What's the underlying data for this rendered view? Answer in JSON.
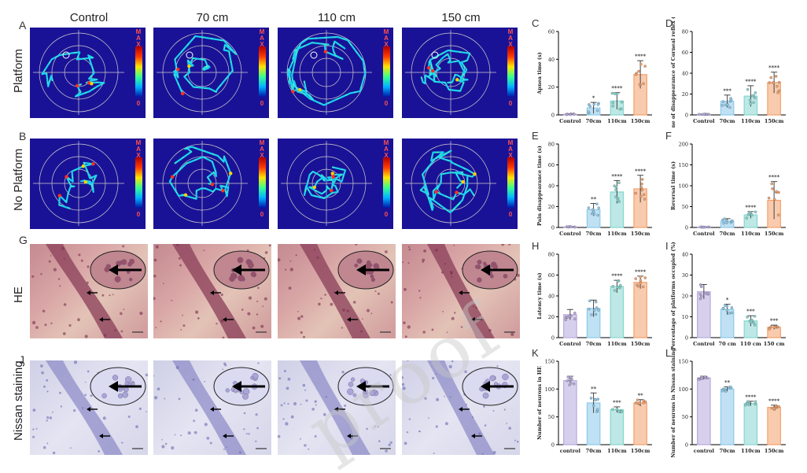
{
  "figure": {
    "columns": [
      "Control",
      "70 cm",
      "110 cm",
      "150 cm"
    ],
    "rows": {
      "A": "Platform",
      "B": "No Platform",
      "G": "HE",
      "J": "Nissan staining"
    },
    "letters": [
      "A",
      "B",
      "G",
      "J",
      "C",
      "D",
      "E",
      "F",
      "H",
      "I",
      "K",
      "L"
    ],
    "colorbar": {
      "top": "M A X",
      "bottom": "0"
    },
    "watermark": "proof",
    "colors": {
      "control": "#b7a9dc",
      "g70": "#8cc9ea",
      "g110": "#86d6cf",
      "g150": "#f4a06b",
      "track_bg": "#1a1296"
    }
  },
  "chart_data": [
    {
      "id": "C",
      "type": "bar",
      "categories": [
        "Control",
        "70cm",
        "110cm",
        "150cm"
      ],
      "values": [
        0.5,
        5,
        10,
        29
      ],
      "errors": [
        0.3,
        4,
        6,
        10
      ],
      "significance": [
        "",
        "*",
        "****",
        "****"
      ],
      "ylabel": "Apnea time (s)",
      "ylim": [
        0,
        60
      ],
      "yticks": [
        0,
        20,
        40,
        60
      ]
    },
    {
      "id": "D",
      "type": "bar",
      "categories": [
        "Control",
        "70cm",
        "110cm",
        "150cm"
      ],
      "values": [
        0.5,
        13,
        18,
        31
      ],
      "errors": [
        0.3,
        6,
        10,
        10
      ],
      "significance": [
        "",
        "***",
        "****",
        "****"
      ],
      "ylabel": "Time of disappearance of Corneal reflex (s)",
      "ylim": [
        0,
        80
      ],
      "yticks": [
        0,
        20,
        40,
        60,
        80
      ]
    },
    {
      "id": "E",
      "type": "bar",
      "categories": [
        "Control",
        "70cm",
        "110cm",
        "150cm"
      ],
      "values": [
        0.5,
        17,
        34,
        37
      ],
      "errors": [
        0.3,
        6,
        11,
        13
      ],
      "significance": [
        "",
        "**",
        "****",
        "****"
      ],
      "ylabel": "Pain disappearance time (s)",
      "ylim": [
        0,
        80
      ],
      "yticks": [
        0,
        20,
        40,
        60,
        80
      ]
    },
    {
      "id": "F",
      "type": "bar",
      "categories": [
        "Control",
        "70cm",
        "110cm",
        "150cm"
      ],
      "values": [
        1,
        15,
        30,
        65
      ],
      "errors": [
        0.5,
        6,
        8,
        45
      ],
      "significance": [
        "",
        "",
        "****",
        "****"
      ],
      "ylabel": "Reversal time (s)",
      "ylim": [
        0,
        200
      ],
      "yticks": [
        0,
        50,
        100,
        150,
        200
      ]
    },
    {
      "id": "H",
      "type": "bar",
      "categories": [
        "Control",
        "70cm",
        "110cm",
        "150cm"
      ],
      "values": [
        22,
        28,
        49,
        53
      ],
      "errors": [
        5,
        8,
        6,
        6
      ],
      "significance": [
        "",
        "",
        "****",
        "****"
      ],
      "ylabel": "Latency time (s)",
      "ylim": [
        0,
        80
      ],
      "yticks": [
        0,
        20,
        40,
        60,
        80
      ]
    },
    {
      "id": "I",
      "type": "bar",
      "categories": [
        "Control",
        "70 cm",
        "110 cm",
        "150 cm"
      ],
      "values": [
        22,
        13.5,
        8,
        5
      ],
      "errors": [
        3.5,
        2.5,
        2.5,
        1
      ],
      "significance": [
        "",
        "*",
        "***",
        "***"
      ],
      "ylabel": "Percentage of platforms occupied (%)",
      "ylim": [
        0,
        40
      ],
      "yticks": [
        0,
        10,
        20,
        30,
        40
      ]
    },
    {
      "id": "K",
      "type": "bar",
      "categories": [
        "control",
        "70cm",
        "110cm",
        "150cm"
      ],
      "values": [
        115,
        75,
        63,
        75
      ],
      "errors": [
        8,
        18,
        5,
        6
      ],
      "significance": [
        "",
        "**",
        "***",
        "**"
      ],
      "ylabel": "Number of neurons in HE",
      "ylim": [
        0,
        150
      ],
      "yticks": [
        0,
        50,
        100,
        150
      ]
    },
    {
      "id": "L",
      "type": "bar",
      "categories": [
        "control",
        "70cm",
        "110cm",
        "150cm"
      ],
      "values": [
        120,
        100,
        74,
        67
      ],
      "errors": [
        3,
        4,
        4,
        4
      ],
      "significance": [
        "",
        "**",
        "****",
        "****"
      ],
      "ylabel": "Number of neurons in Nissan staining",
      "ylim": [
        0,
        150
      ],
      "yticks": [
        0,
        50,
        100,
        150
      ]
    }
  ]
}
